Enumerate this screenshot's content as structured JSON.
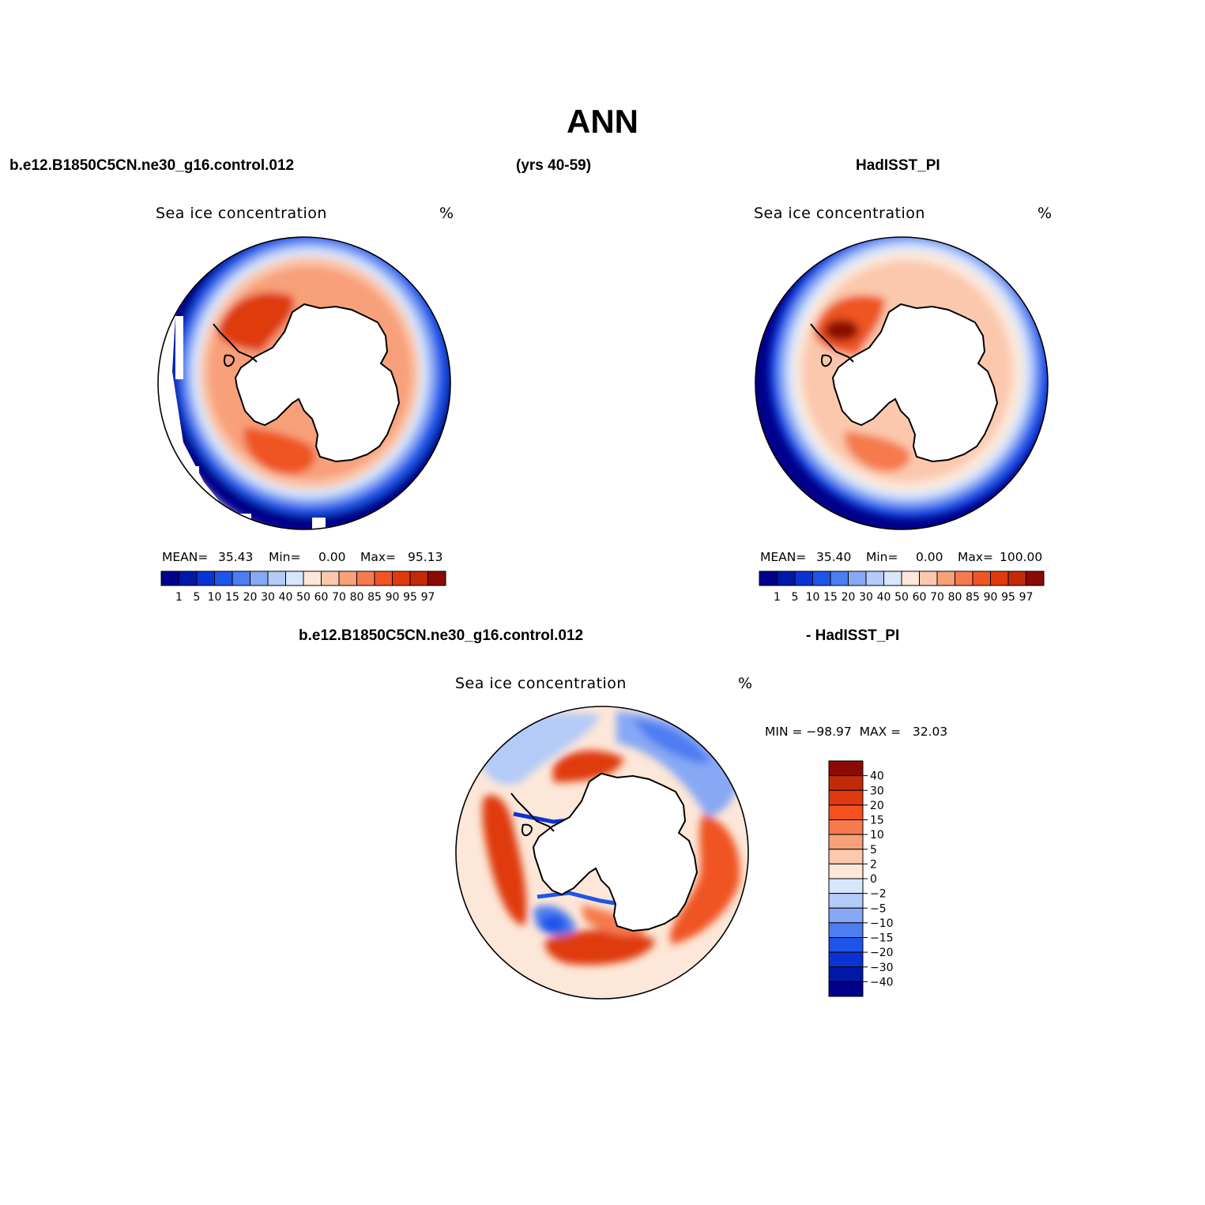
{
  "title": "ANN",
  "headers": {
    "left": "b.e12.B1850C5CN.ne30_g16.control.012",
    "center": "(yrs 40-59)",
    "right": "HadISST_PI",
    "diff_left": "b.e12.B1850C5CN.ne30_g16.control.012",
    "diff_right": "- HadISST_PI"
  },
  "panels": [
    {
      "name": "model",
      "title": "Sea ice concentration",
      "units": "%",
      "mean_label": "MEAN=",
      "mean_value": "35.43",
      "min_label": "Min=",
      "min_value": "0.00",
      "max_label": "Max=",
      "max_value": "95.13"
    },
    {
      "name": "observations",
      "title": "Sea ice concentration",
      "units": "%",
      "mean_label": "MEAN=",
      "mean_value": "35.40",
      "min_label": "Min=",
      "min_value": "0.00",
      "max_label": "Max=",
      "max_value": "100.00"
    },
    {
      "name": "difference",
      "title": "Sea ice concentration",
      "units": "%",
      "minmax_text": "MIN = −98.97  MAX =   32.03"
    }
  ],
  "colorbar_horizontal": {
    "labels": [
      "1",
      "5",
      "10",
      "15",
      "20",
      "30",
      "40",
      "50",
      "60",
      "70",
      "80",
      "85",
      "90",
      "95",
      "97"
    ],
    "colors": [
      "#00008b",
      "#0018a8",
      "#0a33d6",
      "#1e55e8",
      "#4d7df0",
      "#87a8f5",
      "#b4cbf8",
      "#d8e6fb",
      "#fde7d8",
      "#fbc8ad",
      "#f8a07a",
      "#f57a4e",
      "#ef5523",
      "#df3a0e",
      "#c22a08",
      "#8b0a05"
    ]
  },
  "colorbar_vertical": {
    "labels": [
      "40",
      "30",
      "20",
      "15",
      "10",
      "5",
      "2",
      "0",
      "−2",
      "−5",
      "−10",
      "−15",
      "−20",
      "−30",
      "−40"
    ],
    "colors": [
      "#8b0a05",
      "#c22a08",
      "#df3a0e",
      "#f5501e",
      "#f57a4e",
      "#f8a07a",
      "#fbc8ad",
      "#fde7d8",
      "#d8e6fb",
      "#b4cbf8",
      "#87a8f5",
      "#4d7df0",
      "#1e55e8",
      "#0a33d6",
      "#0018a8",
      "#00008b"
    ]
  }
}
